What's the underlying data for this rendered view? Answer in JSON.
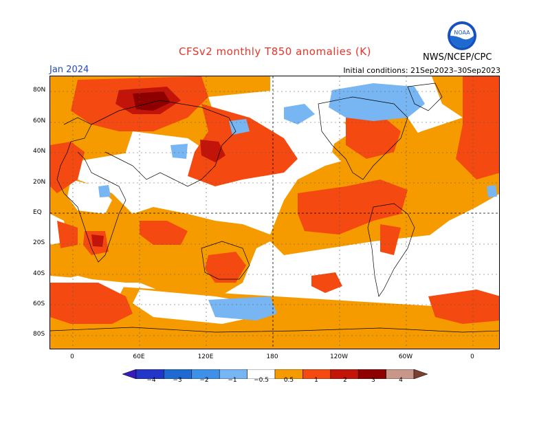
{
  "title": "CFSv2 monthly T850 anomalies (K)",
  "month": "Jan 2024",
  "initial_conditions": "Initial conditions: 21Sep2023–30Sep2023",
  "agency": "NWS/NCEP/CPC",
  "logo_text": "NOAA",
  "lat_labels": [
    "80N",
    "60N",
    "40N",
    "20N",
    "EQ",
    "20S",
    "40S",
    "60S",
    "80S"
  ],
  "lon_labels": [
    "0",
    "60E",
    "120E",
    "180",
    "120W",
    "60W",
    "0"
  ],
  "colorbar": {
    "ticks": [
      "−4",
      "−3",
      "−2",
      "−1",
      "−0.5",
      "0.5",
      "1",
      "2",
      "3",
      "4"
    ],
    "colors": [
      "#3a1ab8",
      "#2336c8",
      "#1e6ad0",
      "#3f90e8",
      "#77b6f2",
      "#ffffff",
      "#f59b00",
      "#f44a12",
      "#c21408",
      "#8e0000",
      "#c9968a",
      "#7a4030"
    ]
  }
}
